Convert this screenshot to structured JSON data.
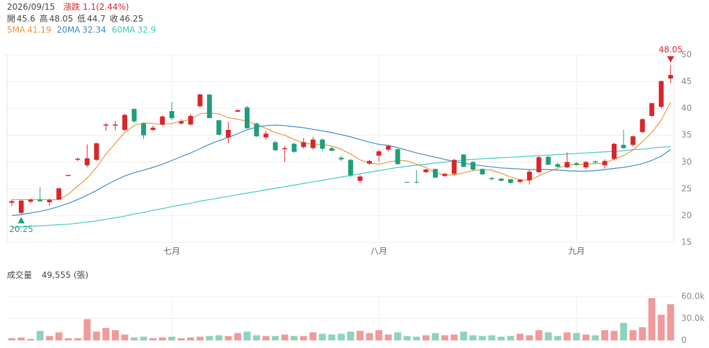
{
  "header": {
    "date": "2026/09/15",
    "change_label": "漲跌",
    "change": "1.1(2.44%)",
    "quote": [
      {
        "label": "開",
        "value": 45.6
      },
      {
        "label": "高",
        "value": 48.05
      },
      {
        "label": "低",
        "value": 44.7
      },
      {
        "label": "收",
        "value": 46.25
      }
    ]
  },
  "chart_data": [
    {
      "type": "candlestick",
      "up_color": "#d9262b",
      "down_color": "#1f9e7a",
      "grid": true,
      "categories": [
        null,
        null,
        null,
        null,
        null,
        null,
        null,
        null,
        null,
        null,
        null,
        null,
        null,
        null,
        null,
        null,
        null,
        "七月",
        null,
        null,
        null,
        null,
        null,
        null,
        null,
        null,
        null,
        null,
        null,
        null,
        null,
        null,
        null,
        null,
        null,
        null,
        null,
        null,
        null,
        "八月",
        null,
        null,
        null,
        null,
        null,
        null,
        null,
        null,
        null,
        null,
        null,
        null,
        null,
        null,
        null,
        null,
        null,
        null,
        null,
        null,
        "九月",
        null,
        null,
        null,
        null,
        null,
        null,
        null,
        null,
        null,
        null
      ],
      "open": [
        22.4,
        20.5,
        22.6,
        23,
        22.5,
        23,
        27.4,
        30.4,
        29.4,
        30.4,
        36.8,
        36.8,
        36,
        39.9,
        37.2,
        36,
        37,
        39.5,
        37.2,
        37,
        40.4,
        42.6,
        37.8,
        34.6,
        39.4,
        40.2,
        37.2,
        34.6,
        33.7,
        32.4,
        33.4,
        32.8,
        32.6,
        34.2,
        32.6,
        30.8,
        30.4,
        26.5,
        29.7,
        31.2,
        32.3,
        32.4,
        26.3,
        26.3,
        28.1,
        28.7,
        27.4,
        27.8,
        31.4,
        30,
        28.7,
        27,
        26.9,
        26.8,
        26.3,
        26.6,
        28.1,
        31,
        29.6,
        29,
        29.8,
        29,
        30.1,
        29.4,
        30.6,
        33.2,
        33.2,
        35.6,
        38.6,
        40.3,
        45.6
      ],
      "high": [
        23,
        23,
        23.2,
        25.3,
        23.2,
        25.2,
        27.6,
        30.9,
        33.3,
        33.6,
        37.3,
        37.7,
        39,
        40,
        37.4,
        36.8,
        38.7,
        41.2,
        38,
        39,
        42.8,
        42.6,
        37.9,
        37.5,
        39.8,
        40.5,
        37.4,
        35.8,
        34,
        33,
        33.6,
        34.5,
        34.7,
        34.4,
        32.9,
        31.2,
        30.6,
        27.6,
        30.4,
        32.3,
        33.2,
        32.5,
        26.3,
        28.5,
        28.8,
        28.8,
        28,
        30.6,
        31.5,
        30.2,
        28.8,
        27.2,
        27,
        26.8,
        26.8,
        28.6,
        31.1,
        31.1,
        29.9,
        31.8,
        30,
        30.2,
        30.3,
        30.5,
        33.6,
        36,
        34.9,
        38.1,
        41,
        45.2,
        48.05
      ],
      "low": [
        21.8,
        20.25,
        22.3,
        22.5,
        21.8,
        22.9,
        27.4,
        30.2,
        29,
        30.2,
        35.8,
        35.9,
        35.8,
        37.4,
        34.3,
        35.8,
        36.8,
        37.8,
        37,
        36.8,
        40.2,
        38.2,
        35,
        33.5,
        39.3,
        36.2,
        34.7,
        34.2,
        32.1,
        30,
        31.7,
        32.5,
        32.3,
        32,
        32,
        30.2,
        27.2,
        26.1,
        29.5,
        30,
        32,
        29.5,
        26.1,
        26,
        28,
        27,
        27.2,
        27.6,
        29,
        28.4,
        27.6,
        26.6,
        26.4,
        26,
        26.1,
        25.8,
        28,
        29.4,
        28.9,
        28.9,
        29.3,
        28.7,
        29.8,
        28.8,
        30.3,
        32.5,
        32.9,
        35.4,
        38.4,
        40,
        44.7
      ],
      "close": [
        22.7,
        22.8,
        23,
        22.7,
        22.9,
        25.1,
        27.6,
        30.6,
        30.7,
        33.5,
        37,
        37,
        38.8,
        37.6,
        35,
        36.4,
        38.5,
        38.2,
        37.6,
        38.6,
        42.6,
        38.2,
        35.1,
        36,
        39.7,
        36.3,
        34.8,
        35.3,
        32.2,
        32.6,
        31.9,
        33.7,
        34.2,
        32.5,
        32.1,
        30.5,
        27.5,
        27.3,
        30.2,
        32,
        33,
        29.6,
        26.2,
        26.2,
        28.6,
        27.1,
        27.8,
        30.4,
        29.1,
        28.6,
        27.7,
        26.8,
        26.5,
        26.1,
        26.7,
        28.2,
        30.9,
        29.5,
        29.1,
        30,
        29.5,
        30,
        29.9,
        30.2,
        33.4,
        32.6,
        34.8,
        38,
        41,
        45.1,
        46.25
      ],
      "series": [
        {
          "name": "5MA",
          "color": "#e8963a",
          "current": 41.19,
          "values": [
            23,
            23,
            23,
            23,
            23,
            23,
            24,
            25.5,
            27,
            29,
            31.5,
            33.5,
            35.5,
            36.8,
            37.3,
            37.2,
            37,
            37.2,
            37.6,
            38,
            39,
            39.2,
            39,
            38.3,
            38,
            37.6,
            37,
            36.3,
            35.5,
            35,
            34.2,
            33.6,
            33.3,
            33.3,
            33,
            32.4,
            31.5,
            30.4,
            29.8,
            29.6,
            30,
            30.3,
            30.2,
            29.6,
            29,
            28,
            27.6,
            27.6,
            28,
            28.4,
            28.6,
            28.5,
            27.9,
            27.2,
            26.7,
            26.6,
            27.4,
            28.2,
            28.8,
            29.5,
            29.5,
            29.6,
            29.7,
            29.8,
            30.6,
            31.2,
            32.2,
            33.8,
            35.5,
            37.8,
            41.19
          ]
        },
        {
          "name": "20MA",
          "color": "#3b8bc8",
          "current": 32.34,
          "values": [
            20,
            20.2,
            20.5,
            20.8,
            21.2,
            21.7,
            22.3,
            23,
            23.8,
            24.7,
            25.7,
            26.6,
            27.4,
            28,
            28.5,
            29,
            29.6,
            30.3,
            31,
            31.7,
            32.5,
            33.3,
            34,
            34.6,
            35.3,
            36,
            36.5,
            36.8,
            36.9,
            36.8,
            36.6,
            36.4,
            36.1,
            35.8,
            35.5,
            35.1,
            34.7,
            34.2,
            33.7,
            33.3,
            33.1,
            32.7,
            32.2,
            31.7,
            31.3,
            30.9,
            30.5,
            30.1,
            29.8,
            29.5,
            29.3,
            29.1,
            28.9,
            28.8,
            28.7,
            28.6,
            28.6,
            28.6,
            28.5,
            28.4,
            28.3,
            28.3,
            28.4,
            28.6,
            28.8,
            29,
            29.3,
            29.7,
            30.3,
            31.1,
            32.34
          ]
        },
        {
          "name": "60MA",
          "color": "#40c8c0",
          "current": 32.9,
          "values": [
            17.8,
            17.9,
            18,
            18.1,
            18.2,
            18.3,
            18.4,
            18.6,
            18.8,
            19,
            19.3,
            19.6,
            19.9,
            20.3,
            20.6,
            21,
            21.3,
            21.7,
            22,
            22.3,
            22.7,
            23,
            23.3,
            23.6,
            23.9,
            24.2,
            24.5,
            24.8,
            25.1,
            25.4,
            25.7,
            26,
            26.3,
            26.6,
            26.9,
            27.2,
            27.5,
            27.8,
            28.1,
            28.4,
            28.7,
            29,
            29.2,
            29.4,
            29.6,
            29.8,
            30,
            30.2,
            30.4,
            30.5,
            30.6,
            30.7,
            30.8,
            30.9,
            31,
            31.1,
            31.2,
            31.3,
            31.4,
            31.5,
            31.6,
            31.7,
            31.8,
            31.9,
            32,
            32.1,
            32.3,
            32.4,
            32.6,
            32.75,
            32.9
          ]
        }
      ],
      "annotations": [
        48.05,
        20.25
      ],
      "ylim": [
        15,
        50
      ],
      "yticks": [
        15,
        20,
        25,
        30,
        35,
        40,
        45,
        50
      ]
    },
    {
      "type": "bar",
      "title": "成交量",
      "current": {
        "value": 49555,
        "label": "49,555"
      },
      "unit": "(張)",
      "up_color": "#f09a9b",
      "down_color": "#8ed3bc",
      "grid": true,
      "values": [
        3000,
        4000,
        2000,
        13000,
        6000,
        11000,
        3000,
        3000,
        29000,
        12000,
        17000,
        14000,
        8000,
        4000,
        5000,
        3000,
        4000,
        5000,
        3000,
        4000,
        5000,
        6000,
        7000,
        6000,
        10000,
        12000,
        7000,
        6000,
        6000,
        8000,
        6000,
        6000,
        11000,
        9000,
        8000,
        9000,
        12000,
        13000,
        10000,
        14000,
        8000,
        11000,
        6000,
        5000,
        7000,
        10000,
        7000,
        8000,
        12000,
        7000,
        6000,
        7000,
        5000,
        6000,
        9000,
        7000,
        14000,
        11000,
        6000,
        11000,
        10000,
        8000,
        7000,
        14000,
        13000,
        24000,
        14000,
        18000,
        58000,
        35000,
        49555
      ],
      "ylim": [
        0,
        60000
      ],
      "yticks": [
        0,
        {
          "value": 30000,
          "label": "30.0k"
        },
        {
          "value": 60000,
          "label": "60.0k"
        }
      ]
    }
  ]
}
